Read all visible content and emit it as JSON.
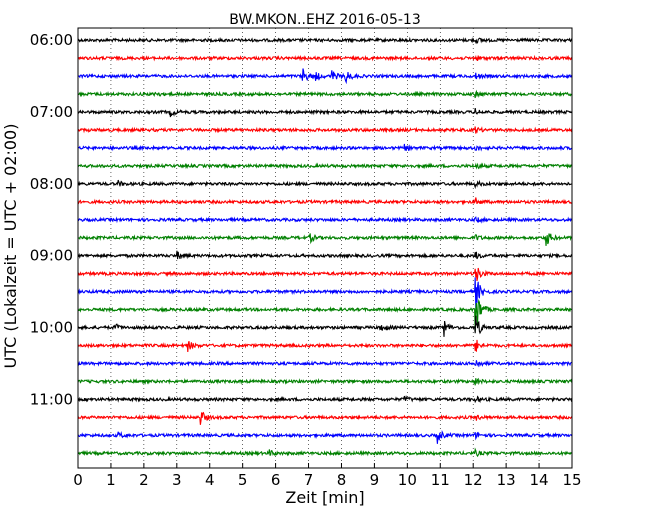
{
  "chart_data": {
    "type": "line",
    "title": "BW.MKON..EHZ 2016-05-13",
    "xlabel": "Zeit  [min]",
    "ylabel": "UTC (Lokalzeit = UTC + 02:00)",
    "xlim": [
      0,
      15
    ],
    "x_ticks": [
      "0",
      "1",
      "2",
      "3",
      "4",
      "5",
      "6",
      "7",
      "8",
      "9",
      "10",
      "11",
      "12",
      "13",
      "14",
      "15"
    ],
    "y_ticks": [
      "06:00",
      "07:00",
      "08:00",
      "09:00",
      "10:00",
      "11:00"
    ],
    "grid": "vertical dotted",
    "trace_colors": [
      "#000000",
      "#ff0000",
      "#0000ff",
      "#008000"
    ],
    "traces_per_hour": 4,
    "series": [
      {
        "start": "06:00",
        "color": "#000000",
        "events": [
          {
            "x": 12.05,
            "amp": 0.3
          }
        ]
      },
      {
        "start": "06:15",
        "color": "#ff0000",
        "events": [
          {
            "x": 12.05,
            "amp": 0.3
          }
        ]
      },
      {
        "start": "06:30",
        "color": "#0000ff",
        "events": [
          {
            "x": 6.8,
            "amp": 0.9
          },
          {
            "x": 7.2,
            "amp": 0.4
          },
          {
            "x": 7.7,
            "amp": 0.6
          },
          {
            "x": 8.1,
            "amp": 0.8
          },
          {
            "x": 12.05,
            "amp": 0.3
          }
        ]
      },
      {
        "start": "06:45",
        "color": "#008000",
        "events": [
          {
            "x": 2.3,
            "amp": 0.3
          },
          {
            "x": 12.05,
            "amp": 0.3
          }
        ]
      },
      {
        "start": "07:00",
        "color": "#000000",
        "events": [
          {
            "x": 2.8,
            "amp": 0.4
          },
          {
            "x": 12.05,
            "amp": 0.3
          }
        ]
      },
      {
        "start": "07:15",
        "color": "#ff0000",
        "events": [
          {
            "x": 12.05,
            "amp": 0.3
          }
        ]
      },
      {
        "start": "07:30",
        "color": "#0000ff",
        "events": [
          {
            "x": 9.9,
            "amp": 0.3
          },
          {
            "x": 12.05,
            "amp": 0.3
          }
        ]
      },
      {
        "start": "07:45",
        "color": "#008000",
        "events": [
          {
            "x": 12.05,
            "amp": 0.3
          }
        ]
      },
      {
        "start": "08:00",
        "color": "#000000",
        "events": [
          {
            "x": 1.2,
            "amp": 0.3
          },
          {
            "x": 12.05,
            "amp": 0.3
          }
        ]
      },
      {
        "start": "08:15",
        "color": "#ff0000",
        "events": [
          {
            "x": 12.05,
            "amp": 0.4
          }
        ]
      },
      {
        "start": "08:30",
        "color": "#0000ff",
        "events": [
          {
            "x": 12.05,
            "amp": 0.3
          }
        ]
      },
      {
        "start": "08:45",
        "color": "#008000",
        "events": [
          {
            "x": 7.0,
            "amp": 0.6
          },
          {
            "x": 14.2,
            "amp": 1.0
          },
          {
            "x": 12.05,
            "amp": 0.3
          }
        ]
      },
      {
        "start": "09:00",
        "color": "#000000",
        "events": [
          {
            "x": 3.0,
            "amp": 0.4
          },
          {
            "x": 12.05,
            "amp": 0.4
          }
        ]
      },
      {
        "start": "09:15",
        "color": "#ff0000",
        "events": [
          {
            "x": 12.05,
            "amp": 1.2
          }
        ]
      },
      {
        "start": "09:30",
        "color": "#0000ff",
        "events": [
          {
            "x": 12.05,
            "amp": 2.0
          }
        ]
      },
      {
        "start": "09:45",
        "color": "#008000",
        "events": [
          {
            "x": 12.05,
            "amp": 3.0
          }
        ]
      },
      {
        "start": "10:00",
        "color": "#000000",
        "events": [
          {
            "x": 1.1,
            "amp": 0.4
          },
          {
            "x": 9.2,
            "amp": 0.5
          },
          {
            "x": 11.1,
            "amp": 0.9
          },
          {
            "x": 12.05,
            "amp": 1.5
          }
        ]
      },
      {
        "start": "10:15",
        "color": "#ff0000",
        "events": [
          {
            "x": 3.3,
            "amp": 0.7
          },
          {
            "x": 12.05,
            "amp": 0.8
          }
        ]
      },
      {
        "start": "10:30",
        "color": "#0000ff",
        "events": [
          {
            "x": 12.05,
            "amp": 0.5
          }
        ]
      },
      {
        "start": "10:45",
        "color": "#008000",
        "events": [
          {
            "x": 12.05,
            "amp": 0.4
          }
        ]
      },
      {
        "start": "11:00",
        "color": "#000000",
        "events": [
          {
            "x": 9.9,
            "amp": 0.3
          },
          {
            "x": 12.05,
            "amp": 0.3
          }
        ]
      },
      {
        "start": "11:15",
        "color": "#ff0000",
        "events": [
          {
            "x": 3.7,
            "amp": 0.9
          },
          {
            "x": 12.05,
            "amp": 0.3
          }
        ]
      },
      {
        "start": "11:30",
        "color": "#0000ff",
        "events": [
          {
            "x": 1.2,
            "amp": 0.3
          },
          {
            "x": 10.9,
            "amp": 0.8
          },
          {
            "x": 12.05,
            "amp": 0.3
          }
        ]
      },
      {
        "start": "11:45",
        "color": "#008000",
        "events": [
          {
            "x": 5.8,
            "amp": 0.3
          },
          {
            "x": 12.05,
            "amp": 0.3
          }
        ]
      }
    ]
  }
}
